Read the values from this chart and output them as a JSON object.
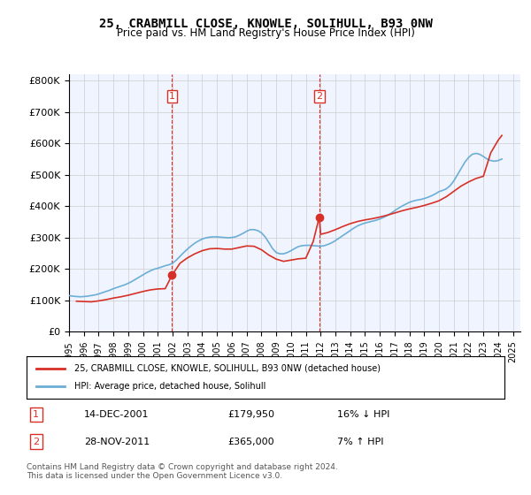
{
  "title": "25, CRABMILL CLOSE, KNOWLE, SOLIHULL, B93 0NW",
  "subtitle": "Price paid vs. HM Land Registry's House Price Index (HPI)",
  "legend_line1": "25, CRABMILL CLOSE, KNOWLE, SOLIHULL, B93 0NW (detached house)",
  "legend_line2": "HPI: Average price, detached house, Solihull",
  "footnote": "Contains HM Land Registry data © Crown copyright and database right 2024.\nThis data is licensed under the Open Government Licence v3.0.",
  "sale1_label": "1",
  "sale1_date": "14-DEC-2001",
  "sale1_price": "£179,950",
  "sale1_hpi": "16% ↓ HPI",
  "sale2_label": "2",
  "sale2_date": "28-NOV-2011",
  "sale2_price": "£365,000",
  "sale2_hpi": "7% ↑ HPI",
  "sale1_x": 2001.96,
  "sale1_y": 179950,
  "sale2_x": 2011.91,
  "sale2_y": 365000,
  "hpi_color": "#6baed6",
  "price_color": "#d73027",
  "vline_color": "#d73027",
  "background_color": "#ffffff",
  "plot_bg_color": "#f0f4ff",
  "grid_color": "#cccccc",
  "ylim": [
    0,
    820000
  ],
  "xlim": [
    1995,
    2025.5
  ],
  "yticks": [
    0,
    100000,
    200000,
    300000,
    400000,
    500000,
    600000,
    700000,
    800000
  ],
  "ytick_labels": [
    "£0",
    "£100K",
    "£200K",
    "£300K",
    "£400K",
    "£500K",
    "£600K",
    "£700K",
    "£800K"
  ],
  "xticks": [
    1995,
    1996,
    1997,
    1998,
    1999,
    2000,
    2001,
    2002,
    2003,
    2004,
    2005,
    2006,
    2007,
    2008,
    2009,
    2010,
    2011,
    2012,
    2013,
    2014,
    2015,
    2016,
    2017,
    2018,
    2019,
    2020,
    2021,
    2022,
    2023,
    2024,
    2025
  ],
  "hpi_years": [
    1995.0,
    1995.25,
    1995.5,
    1995.75,
    1996.0,
    1996.25,
    1996.5,
    1996.75,
    1997.0,
    1997.25,
    1997.5,
    1997.75,
    1998.0,
    1998.25,
    1998.5,
    1998.75,
    1999.0,
    1999.25,
    1999.5,
    1999.75,
    2000.0,
    2000.25,
    2000.5,
    2000.75,
    2001.0,
    2001.25,
    2001.5,
    2001.75,
    2002.0,
    2002.25,
    2002.5,
    2002.75,
    2003.0,
    2003.25,
    2003.5,
    2003.75,
    2004.0,
    2004.25,
    2004.5,
    2004.75,
    2005.0,
    2005.25,
    2005.5,
    2005.75,
    2006.0,
    2006.25,
    2006.5,
    2006.75,
    2007.0,
    2007.25,
    2007.5,
    2007.75,
    2008.0,
    2008.25,
    2008.5,
    2008.75,
    2009.0,
    2009.25,
    2009.5,
    2009.75,
    2010.0,
    2010.25,
    2010.5,
    2010.75,
    2011.0,
    2011.25,
    2011.5,
    2011.75,
    2012.0,
    2012.25,
    2012.5,
    2012.75,
    2013.0,
    2013.25,
    2013.5,
    2013.75,
    2014.0,
    2014.25,
    2014.5,
    2014.75,
    2015.0,
    2015.25,
    2015.5,
    2015.75,
    2016.0,
    2016.25,
    2016.5,
    2016.75,
    2017.0,
    2017.25,
    2017.5,
    2017.75,
    2018.0,
    2018.25,
    2018.5,
    2018.75,
    2019.0,
    2019.25,
    2019.5,
    2019.75,
    2020.0,
    2020.25,
    2020.5,
    2020.75,
    2021.0,
    2021.25,
    2021.5,
    2021.75,
    2022.0,
    2022.25,
    2022.5,
    2022.75,
    2023.0,
    2023.25,
    2023.5,
    2023.75,
    2024.0,
    2024.25
  ],
  "hpi_values": [
    115000,
    113000,
    112000,
    111000,
    112000,
    113000,
    115000,
    117000,
    120000,
    124000,
    128000,
    132000,
    137000,
    141000,
    145000,
    149000,
    154000,
    160000,
    167000,
    174000,
    181000,
    188000,
    194000,
    199000,
    202000,
    206000,
    210000,
    213000,
    218000,
    228000,
    240000,
    252000,
    263000,
    273000,
    282000,
    289000,
    295000,
    299000,
    301000,
    302000,
    302000,
    301000,
    300000,
    299000,
    300000,
    302000,
    307000,
    313000,
    320000,
    325000,
    325000,
    322000,
    315000,
    302000,
    284000,
    265000,
    252000,
    248000,
    248000,
    252000,
    258000,
    265000,
    271000,
    274000,
    275000,
    275000,
    274000,
    273000,
    272000,
    274000,
    278000,
    283000,
    290000,
    298000,
    306000,
    314000,
    322000,
    330000,
    337000,
    342000,
    346000,
    349000,
    352000,
    355000,
    359000,
    364000,
    370000,
    377000,
    385000,
    393000,
    400000,
    406000,
    412000,
    416000,
    419000,
    421000,
    424000,
    428000,
    433000,
    439000,
    446000,
    450000,
    455000,
    465000,
    480000,
    500000,
    520000,
    540000,
    555000,
    565000,
    568000,
    565000,
    558000,
    550000,
    545000,
    543000,
    545000,
    550000
  ],
  "price_years": [
    1995.5,
    1996.0,
    1996.5,
    1997.0,
    1997.5,
    1998.0,
    1998.5,
    1999.0,
    1999.5,
    2000.0,
    2000.5,
    2001.0,
    2001.5,
    2001.96,
    2002.5,
    2003.0,
    2003.5,
    2004.0,
    2004.5,
    2005.0,
    2005.5,
    2006.0,
    2006.5,
    2007.0,
    2007.5,
    2008.0,
    2008.5,
    2009.0,
    2009.5,
    2010.0,
    2010.5,
    2011.0,
    2011.5,
    2011.91,
    2012.0,
    2012.5,
    2013.0,
    2013.5,
    2014.0,
    2014.5,
    2015.0,
    2015.5,
    2016.0,
    2016.5,
    2017.0,
    2017.5,
    2018.0,
    2018.5,
    2019.0,
    2019.5,
    2020.0,
    2020.5,
    2021.0,
    2021.5,
    2022.0,
    2022.5,
    2023.0,
    2023.5,
    2024.0,
    2024.25
  ],
  "price_values": [
    97000,
    96000,
    95000,
    98000,
    102000,
    107000,
    111000,
    116000,
    122000,
    128000,
    133000,
    136000,
    137000,
    179950,
    218000,
    235000,
    248000,
    258000,
    264000,
    265000,
    263000,
    263000,
    268000,
    273000,
    272000,
    261000,
    244000,
    231000,
    224000,
    228000,
    232000,
    234000,
    287000,
    365000,
    310000,
    316000,
    325000,
    335000,
    344000,
    351000,
    356000,
    360000,
    365000,
    371000,
    378000,
    385000,
    391000,
    396000,
    402000,
    409000,
    417000,
    430000,
    447000,
    464000,
    477000,
    488000,
    495000,
    570000,
    610000,
    625000
  ]
}
